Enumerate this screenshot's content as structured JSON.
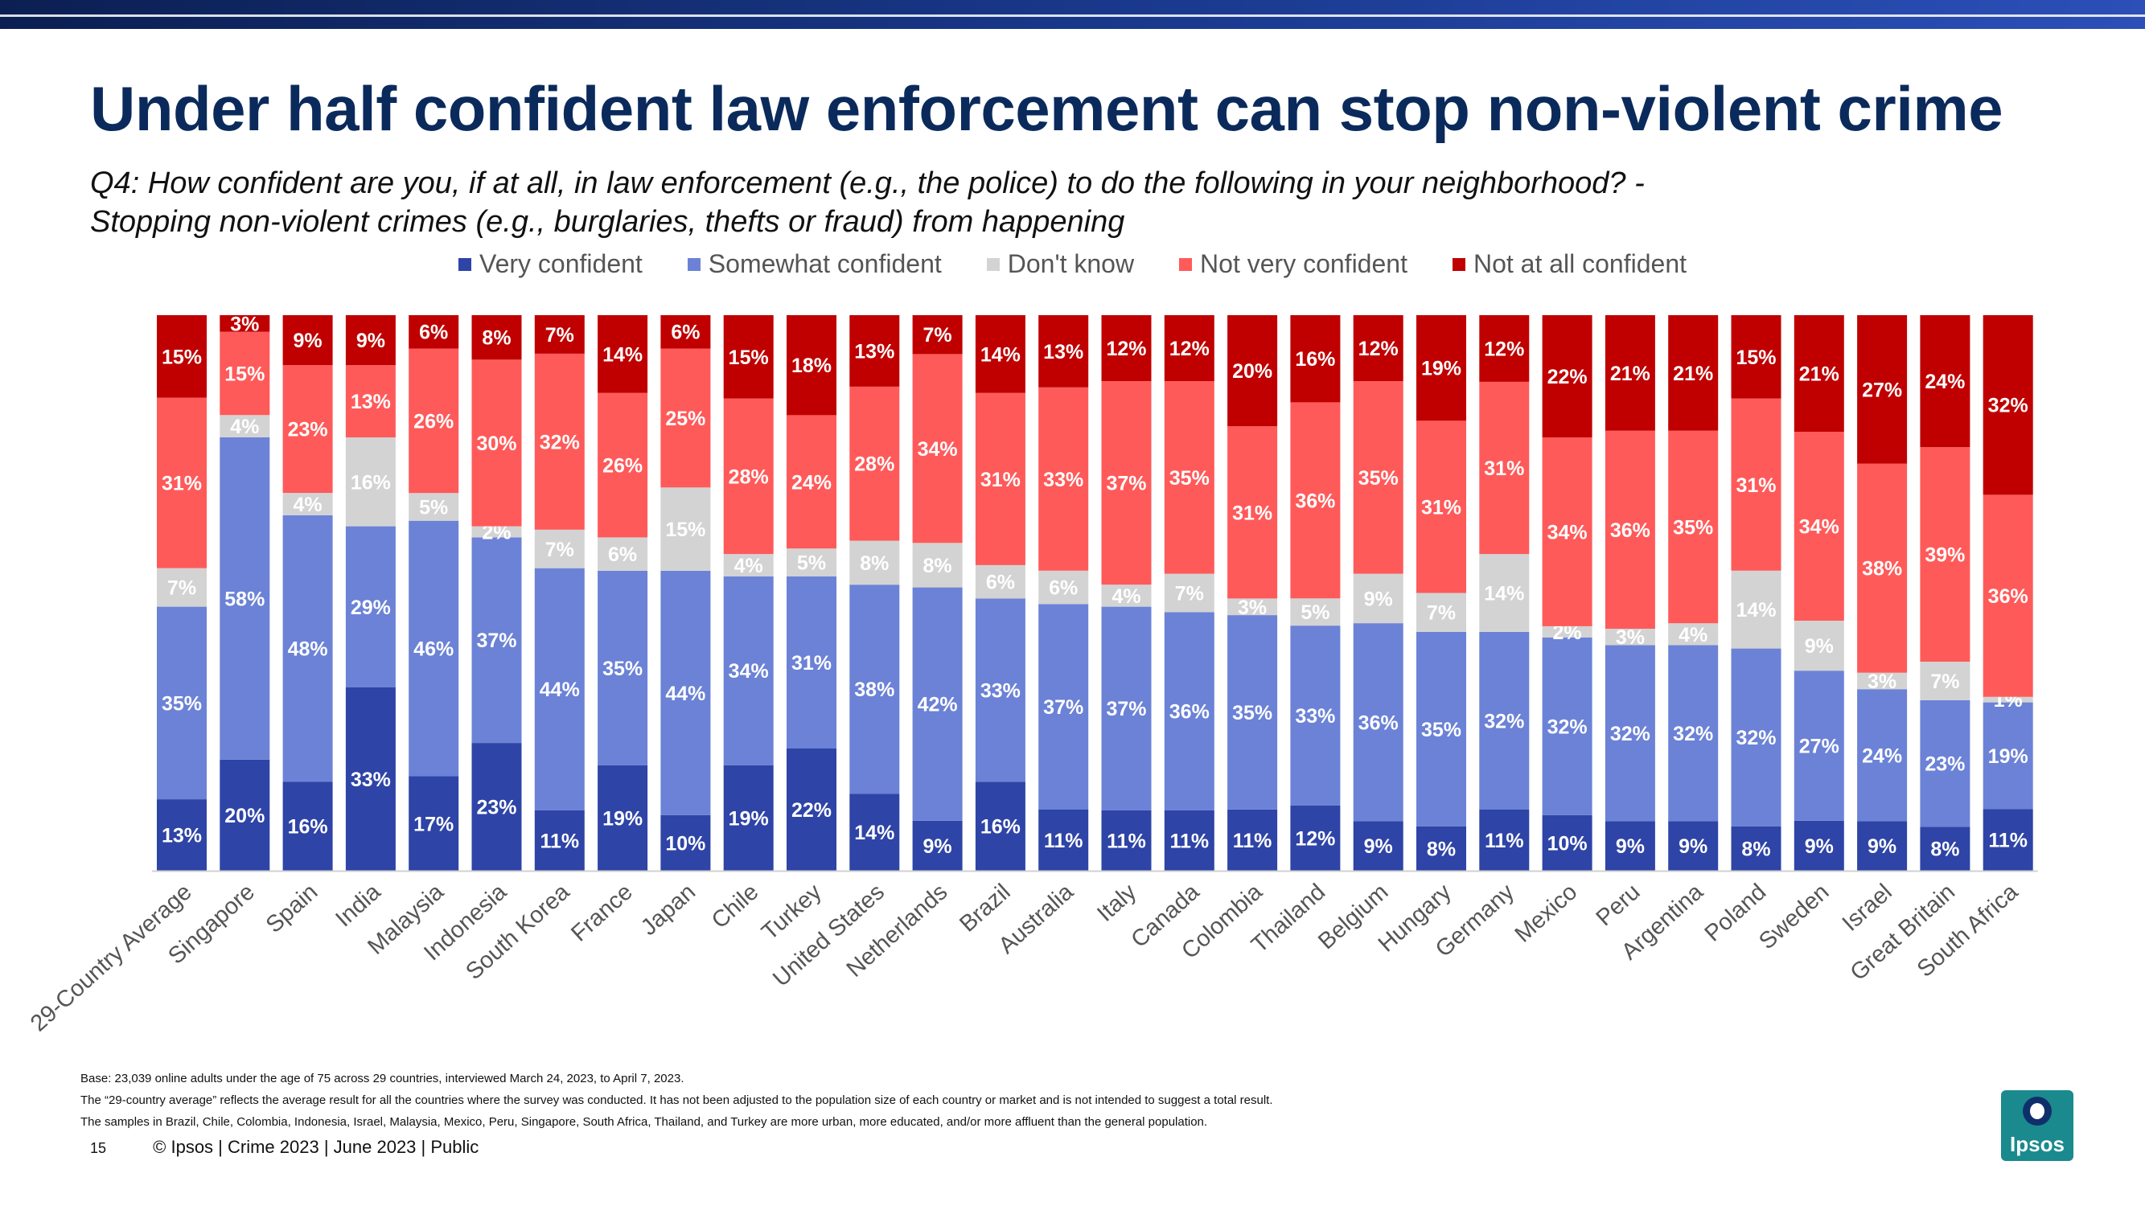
{
  "header": {
    "title": "Under half confident law enforcement can stop non-violent crime",
    "subtitle_line1": "Q4: How confident are you, if at all, in law enforcement (e.g., the police) to do the following in your neighborhood? -",
    "subtitle_line2": "Stopping non-violent crimes (e.g., burglaries, thefts or fraud) from happening"
  },
  "colors": {
    "very": "#2e44a6",
    "somewhat": "#6b82d6",
    "dontknow": "#d3d3d3",
    "notvery": "#ff5a5a",
    "notatall": "#c00000"
  },
  "legend": [
    {
      "label": "Very confident",
      "color": "#2e44a6"
    },
    {
      "label": "Somewhat confident",
      "color": "#6b82d6"
    },
    {
      "label": "Don't know",
      "color": "#d3d3d3"
    },
    {
      "label": "Not very confident",
      "color": "#ff5a5a"
    },
    {
      "label": "Not at all confident",
      "color": "#c00000"
    }
  ],
  "chart_data": {
    "type": "bar",
    "stacked": true,
    "title": "Under half confident law enforcement can stop non-violent crime",
    "xlabel": "",
    "ylabel": "",
    "ylim": [
      0,
      100
    ],
    "categories": [
      "29-Country Average",
      "Singapore",
      "Spain",
      "India",
      "Malaysia",
      "Indonesia",
      "South Korea",
      "France",
      "Japan",
      "Chile",
      "Turkey",
      "United States",
      "Netherlands",
      "Brazil",
      "Australia",
      "Italy",
      "Canada",
      "Colombia",
      "Thailand",
      "Belgium",
      "Hungary",
      "Germany",
      "Mexico",
      "Peru",
      "Argentina",
      "Poland",
      "Sweden",
      "Israel",
      "Great Britain",
      "South Africa"
    ],
    "series": [
      {
        "name": "Very confident",
        "values": [
          13,
          20,
          16,
          33,
          17,
          23,
          11,
          19,
          10,
          19,
          22,
          14,
          9,
          16,
          11,
          11,
          11,
          11,
          12,
          9,
          8,
          11,
          10,
          9,
          9,
          8,
          9,
          9,
          8,
          11
        ]
      },
      {
        "name": "Somewhat confident",
        "values": [
          35,
          58,
          48,
          29,
          46,
          37,
          44,
          35,
          44,
          34,
          31,
          38,
          42,
          33,
          37,
          37,
          36,
          35,
          33,
          36,
          35,
          32,
          32,
          32,
          32,
          32,
          27,
          24,
          23,
          19
        ]
      },
      {
        "name": "Don't know",
        "values": [
          7,
          4,
          4,
          16,
          5,
          2,
          7,
          6,
          15,
          4,
          5,
          8,
          8,
          6,
          6,
          4,
          7,
          3,
          5,
          9,
          7,
          14,
          2,
          3,
          4,
          14,
          9,
          3,
          7,
          1
        ]
      },
      {
        "name": "Not very confident",
        "values": [
          31,
          15,
          23,
          13,
          26,
          30,
          32,
          26,
          25,
          28,
          24,
          28,
          34,
          31,
          33,
          37,
          35,
          31,
          36,
          35,
          31,
          31,
          34,
          36,
          35,
          31,
          34,
          38,
          39,
          36
        ]
      },
      {
        "name": "Not at all confident",
        "values": [
          15,
          3,
          9,
          9,
          6,
          8,
          7,
          14,
          6,
          15,
          18,
          13,
          7,
          14,
          13,
          12,
          12,
          20,
          16,
          12,
          19,
          12,
          22,
          21,
          21,
          15,
          21,
          27,
          24,
          32
        ]
      }
    ]
  },
  "footnotes": {
    "base": "Base: 23,039 online adults under the age of 75 across 29 countries, interviewed March 24, 2023, to April 7, 2023.",
    "average": "The “29-country average” reflects the average result for all the countries where the survey was conducted. It has not been adjusted to the population size of each country or market and is not intended to suggest a total result.",
    "samples": "The samples in Brazil, Chile, Colombia, Indonesia, Israel, Malaysia, Mexico, Peru, Singapore, South Africa, Thailand, and Turkey are more urban, more educated, and/or more affluent than the general population."
  },
  "footer": {
    "page_number": "15",
    "text": "© Ipsos | Crime 2023 | June 2023 | Public"
  },
  "logo": {
    "text": "Ipsos"
  }
}
